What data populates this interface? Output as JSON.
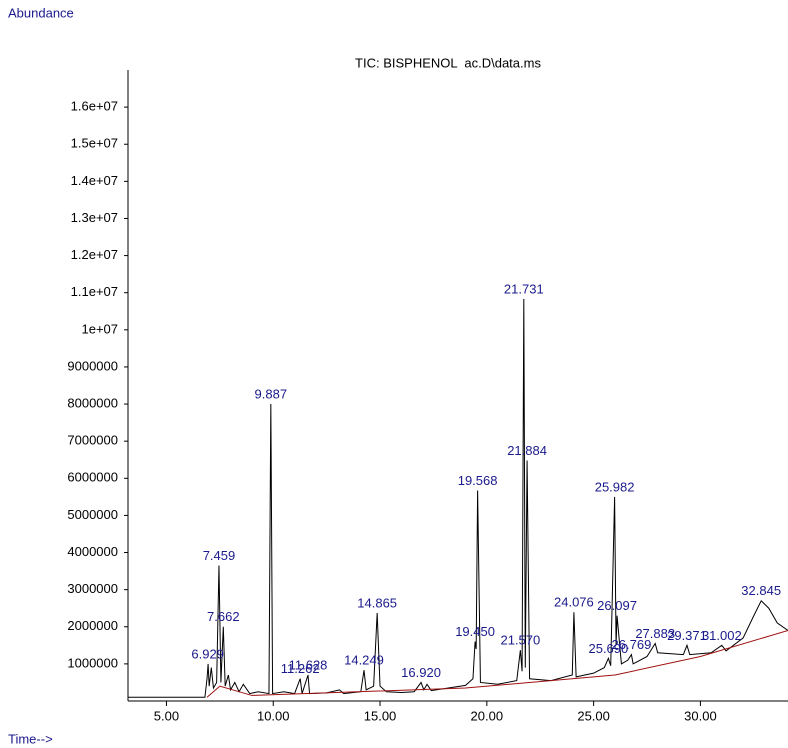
{
  "chart_data": {
    "type": "line",
    "y_axis_label": "Abundance",
    "x_axis_label": "Time-->",
    "title": "TIC: BISPHENOL  ac.D\\data.ms",
    "xlim": [
      3.2,
      34.1
    ],
    "ylim": [
      0,
      17000000
    ],
    "xticks": [
      {
        "value": 5,
        "label": "5.00"
      },
      {
        "value": 10,
        "label": "10.00"
      },
      {
        "value": 15,
        "label": "15.00"
      },
      {
        "value": 20,
        "label": "20.00"
      },
      {
        "value": 25,
        "label": "25.00"
      },
      {
        "value": 30,
        "label": "30.00"
      }
    ],
    "yticks": [
      1000000,
      2000000,
      3000000,
      4000000,
      5000000,
      6000000,
      7000000,
      8000000,
      9000000,
      {
        "value": 10000000,
        "label": "1e+07"
      },
      {
        "value": 11000000,
        "label": "1.1e+07"
      },
      {
        "value": 12000000,
        "label": "1.2e+07"
      },
      {
        "value": 13000000,
        "label": "1.3e+07"
      },
      {
        "value": 14000000,
        "label": "1.4e+07"
      },
      {
        "value": 15000000,
        "label": "1.5e+07"
      },
      {
        "value": 16000000,
        "label": "1.6e+07"
      }
    ],
    "series": [
      {
        "color": "#000000",
        "x": [
          3.2,
          6.8,
          6.9,
          6.95,
          7.0,
          7.1,
          7.2,
          7.35,
          7.459,
          7.55,
          7.662,
          7.75,
          7.9,
          8.0,
          8.2,
          8.4,
          8.6,
          8.9,
          9.3,
          9.8,
          9.887,
          9.97,
          10.5,
          11.0,
          11.262,
          11.35,
          11.628,
          11.7,
          12.5,
          13.1,
          13.3,
          14.1,
          14.249,
          14.35,
          14.7,
          14.865,
          15.0,
          15.3,
          16.0,
          16.6,
          16.92,
          17.05,
          17.2,
          17.4,
          19.0,
          19.35,
          19.45,
          19.5,
          19.568,
          19.7,
          20.5,
          21.4,
          21.57,
          21.65,
          21.731,
          21.8,
          21.884,
          22.0,
          23.0,
          24.0,
          24.076,
          24.18,
          25.0,
          25.5,
          25.69,
          25.8,
          25.982,
          26.05,
          26.097,
          26.3,
          26.6,
          26.769,
          26.85,
          27.5,
          27.883,
          28.0,
          29.2,
          29.371,
          29.5,
          30.5,
          31.002,
          31.2,
          32.0,
          32.5,
          32.845,
          33.2,
          33.6,
          34.1
        ],
        "values": [
          100000,
          100000,
          600000,
          1000000,
          400000,
          900000,
          350000,
          500000,
          3650000,
          500000,
          2000000,
          400000,
          700000,
          300000,
          500000,
          250000,
          450000,
          200000,
          250000,
          200000,
          8000000,
          200000,
          250000,
          200000,
          600000,
          200000,
          700000,
          200000,
          220000,
          300000,
          200000,
          250000,
          830000,
          300000,
          400000,
          2370000,
          400000,
          250000,
          230000,
          250000,
          500000,
          300000,
          450000,
          280000,
          420000,
          600000,
          1600000,
          1400000,
          5670000,
          500000,
          450000,
          550000,
          1370000,
          800000,
          10830000,
          900000,
          6480000,
          600000,
          550000,
          700000,
          2390000,
          650000,
          750000,
          900000,
          1150000,
          950000,
          5500000,
          1500000,
          2300000,
          1000000,
          1100000,
          1250000,
          1000000,
          1200000,
          1550000,
          1300000,
          1250000,
          1500000,
          1250000,
          1300000,
          1500000,
          1350000,
          1700000,
          2300000,
          2700000,
          2500000,
          2100000,
          1900000
        ]
      },
      {
        "color": "#a01010",
        "x": [
          6.9,
          7.5,
          9,
          19,
          26,
          30,
          34.1
        ],
        "values": [
          100000,
          400000,
          150000,
          350000,
          700000,
          1200000,
          1900000
        ]
      }
    ],
    "peaks": [
      {
        "x": 6.929,
        "y": 1000000,
        "label": "6.929"
      },
      {
        "x": 7.459,
        "y": 3650000,
        "label": "7.459"
      },
      {
        "x": 7.662,
        "y": 2000000,
        "label": "7.662"
      },
      {
        "x": 9.887,
        "y": 8000000,
        "label": "9.887"
      },
      {
        "x": 11.262,
        "y": 600000,
        "label": "11.262"
      },
      {
        "x": 11.628,
        "y": 700000,
        "label": "11.628"
      },
      {
        "x": 14.249,
        "y": 830000,
        "label": "14.249"
      },
      {
        "x": 14.865,
        "y": 2370000,
        "label": "14.865"
      },
      {
        "x": 16.92,
        "y": 500000,
        "label": "16.920"
      },
      {
        "x": 19.45,
        "y": 1600000,
        "label": "19.450"
      },
      {
        "x": 19.568,
        "y": 5670000,
        "label": "19.568"
      },
      {
        "x": 21.57,
        "y": 1370000,
        "label": "21.570"
      },
      {
        "x": 21.731,
        "y": 10830000,
        "label": "21.731"
      },
      {
        "x": 21.884,
        "y": 6480000,
        "label": "21.884"
      },
      {
        "x": 24.076,
        "y": 2390000,
        "label": "24.076"
      },
      {
        "x": 25.69,
        "y": 1150000,
        "label": "25.690"
      },
      {
        "x": 25.982,
        "y": 5500000,
        "label": "25.982"
      },
      {
        "x": 26.097,
        "y": 2300000,
        "label": "26.097"
      },
      {
        "x": 26.769,
        "y": 1250000,
        "label": "26.769"
      },
      {
        "x": 27.883,
        "y": 1550000,
        "label": "27.883"
      },
      {
        "x": 29.371,
        "y": 1500000,
        "label": "29.371"
      },
      {
        "x": 31.002,
        "y": 1500000,
        "label": "31.002"
      },
      {
        "x": 32.845,
        "y": 2700000,
        "label": "32.845"
      }
    ]
  }
}
